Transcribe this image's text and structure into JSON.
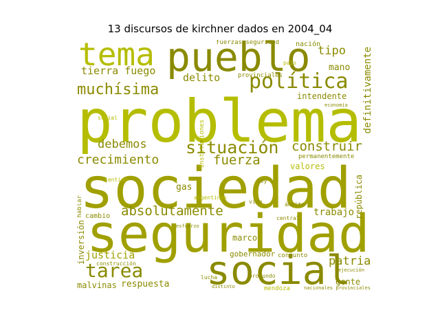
{
  "title": "13 discursos de kirchner dados en 2004_04",
  "colors": {
    "dark": "#8a8a00",
    "mid": "#a0a000",
    "light": "#b5bd00",
    "pale": "#c8cc40"
  },
  "words": {
    "problema": "problema",
    "sociedad": "sociedad",
    "seguridad": "seguridad",
    "social": "social",
    "pueblo": "pueblo",
    "tema": "tema",
    "politica": "política",
    "situacion": "situación",
    "muchisima": "muchísima",
    "crecimiento": "crecimiento",
    "fuerza": "fuerza",
    "tarea": "tarea",
    "absolutamente": "absolutamente",
    "construir": "construir",
    "debemos": "debemos",
    "tierra_fuego": "tierra fuego",
    "delito": "delito",
    "tipo": "tipo",
    "mano": "mano",
    "intendente": "intendente",
    "definitivamente": "definitivamente",
    "patria": "patria",
    "justicia": "justicia",
    "trabajo": "trabajo",
    "marco": "marco",
    "gobernador": "gobernador",
    "respuesta": "respuesta",
    "malvinas": "malvinas",
    "inversion": "inversión",
    "valores": "valores",
    "republica": "república",
    "gente": "gente",
    "gas": "gas",
    "cambio": "cambio",
    "fuerzas_seguridad": "fuerzas seguridad",
    "nacion": "nación",
    "provinciales": "provinciales",
    "permanentemente": "permanentemente",
    "hablar": "hablar",
    "construccion": "construcción",
    "conjunto": "conjunto",
    "nacionales_provinciales": "nacionales provinciales",
    "lucha": "lucha",
    "mendoza": "mendoza",
    "profundo": "profundo",
    "economia": "economía",
    "argentinos": "argentinos",
    "instituciones": "instituciones",
    "ejecucion": "ejecución",
    "ambito": "ámbito",
    "central": "central",
    "social_small": "social",
    "distinto": "distinto",
    "sentido": "sentido",
    "vida": "vida",
    "esfuerzo": "esfuerzo",
    "pais": "país",
    "ley": "ley"
  }
}
